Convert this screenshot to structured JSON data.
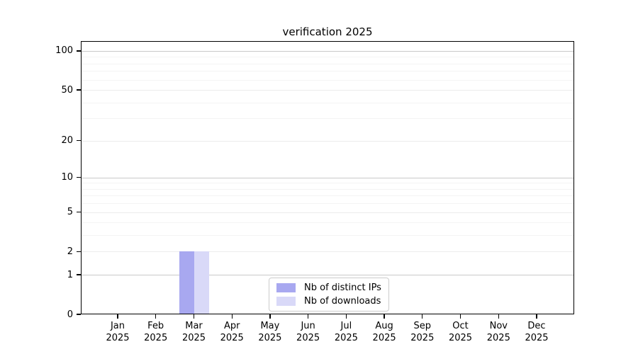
{
  "chart_data": {
    "type": "bar",
    "title": "verification 2025",
    "year_label": "2025",
    "categories": [
      "Jan",
      "Feb",
      "Mar",
      "Apr",
      "May",
      "Jun",
      "Jul",
      "Aug",
      "Sep",
      "Oct",
      "Nov",
      "Dec"
    ],
    "series": [
      {
        "name": "Nb of distinct IPs",
        "color": "#a8a8f0",
        "values": [
          0,
          0,
          2,
          0,
          0,
          0,
          0,
          0,
          0,
          0,
          0,
          0
        ]
      },
      {
        "name": "Nb of downloads",
        "color": "#d9d9f8",
        "values": [
          0,
          0,
          2,
          0,
          0,
          0,
          0,
          0,
          0,
          0,
          0,
          0
        ]
      }
    ],
    "y_axis": {
      "scale": "log1p",
      "ticks": [
        0,
        1,
        2,
        5,
        10,
        20,
        50,
        100
      ],
      "minor_ticks": [
        3,
        4,
        6,
        7,
        8,
        9,
        30,
        40,
        60,
        70,
        80,
        90
      ],
      "max": 119
    },
    "grid": true,
    "legend_position": "bottom-center-inside"
  },
  "colors": {
    "decade_gridline": "#c9c9c9",
    "major_gridline": "#ececec",
    "minor_gridline": "#f4f4f4",
    "axis": "#000000",
    "legend_border": "#cccccc"
  }
}
